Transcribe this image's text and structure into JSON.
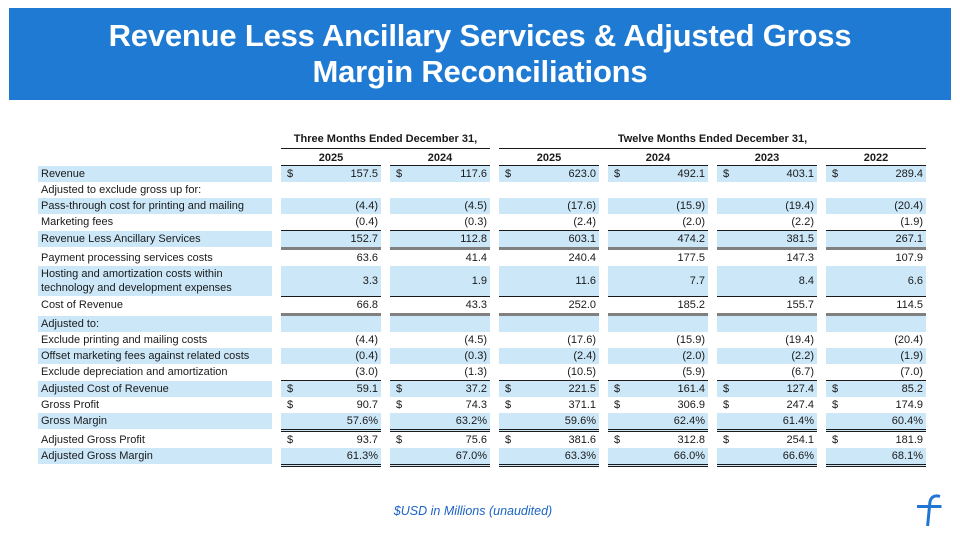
{
  "banner": {
    "title_line1": "Revenue Less Ancillary Services & Adjusted Gross",
    "title_line2": "Margin Reconciliations",
    "bg_color": "#1e7ad2",
    "text_color": "#ffffff"
  },
  "table": {
    "stripe_color": "#cbe7f8",
    "group_headers": [
      {
        "label": "Three Months Ended December 31,",
        "span": 2
      },
      {
        "label": "Twelve Months Ended December 31,",
        "span": 4
      }
    ],
    "year_columns": [
      "2025",
      "2024",
      "2025",
      "2024",
      "2023",
      "2022"
    ],
    "rows": [
      {
        "label_lines": [
          "Revenue"
        ],
        "dollar": true,
        "stripe": true,
        "rule": "none",
        "values": [
          "157.5",
          "117.6",
          "623.0",
          "492.1",
          "403.1",
          "289.4"
        ]
      },
      {
        "label_lines": [
          "Adjusted to exclude gross up for:"
        ],
        "dollar": false,
        "stripe": false,
        "rule": "none",
        "values": [
          "",
          "",
          "",
          "",
          "",
          ""
        ]
      },
      {
        "label_lines": [
          "Pass-through cost for printing and mailing"
        ],
        "dollar": false,
        "stripe": true,
        "rule": "none",
        "values": [
          "(4.4)",
          "(4.5)",
          "(17.6)",
          "(15.9)",
          "(19.4)",
          "(20.4)"
        ]
      },
      {
        "label_lines": [
          "Marketing fees"
        ],
        "dollar": false,
        "stripe": false,
        "rule": "sum",
        "values": [
          "(0.4)",
          "(0.3)",
          "(2.4)",
          "(2.0)",
          "(2.2)",
          "(1.9)"
        ]
      },
      {
        "label_lines": [
          "Revenue Less Ancillary Services"
        ],
        "dollar": false,
        "stripe": true,
        "rule": "total",
        "values": [
          "152.7",
          "112.8",
          "603.1",
          "474.2",
          "381.5",
          "267.1"
        ]
      },
      {
        "label_lines": [
          "Payment processing services costs"
        ],
        "dollar": false,
        "stripe": false,
        "rule": "none",
        "values": [
          "63.6",
          "41.4",
          "240.4",
          "177.5",
          "147.3",
          "107.9"
        ]
      },
      {
        "label_lines": [
          "Hosting and amortization costs within",
          "technology and development expenses"
        ],
        "dollar": false,
        "stripe": true,
        "rule": "sum",
        "values": [
          "3.3",
          "1.9",
          "11.6",
          "7.7",
          "8.4",
          "6.6"
        ]
      },
      {
        "label_lines": [
          "Cost of Revenue"
        ],
        "dollar": false,
        "stripe": false,
        "rule": "total",
        "values": [
          "66.8",
          "43.3",
          "252.0",
          "185.2",
          "155.7",
          "114.5"
        ]
      },
      {
        "label_lines": [
          "Adjusted to:"
        ],
        "dollar": false,
        "stripe": true,
        "rule": "none",
        "values": [
          "",
          "",
          "",
          "",
          "",
          ""
        ]
      },
      {
        "label_lines": [
          "Exclude printing and mailing costs"
        ],
        "dollar": false,
        "stripe": false,
        "rule": "none",
        "values": [
          "(4.4)",
          "(4.5)",
          "(17.6)",
          "(15.9)",
          "(19.4)",
          "(20.4)"
        ]
      },
      {
        "label_lines": [
          "Offset marketing fees against related costs"
        ],
        "dollar": false,
        "stripe": true,
        "rule": "none",
        "values": [
          "(0.4)",
          "(0.3)",
          "(2.4)",
          "(2.0)",
          "(2.2)",
          "(1.9)"
        ]
      },
      {
        "label_lines": [
          "Exclude depreciation and amortization"
        ],
        "dollar": false,
        "stripe": false,
        "rule": "sum",
        "values": [
          "(3.0)",
          "(1.3)",
          "(10.5)",
          "(5.9)",
          "(6.7)",
          "(7.0)"
        ]
      },
      {
        "label_lines": [
          "Adjusted Cost of Revenue"
        ],
        "dollar": true,
        "stripe": true,
        "rule": "none",
        "values": [
          "59.1",
          "37.2",
          "221.5",
          "161.4",
          "127.4",
          "85.2"
        ]
      },
      {
        "label_lines": [
          "Gross Profit"
        ],
        "dollar": true,
        "stripe": false,
        "rule": "none",
        "values": [
          "90.7",
          "74.3",
          "371.1",
          "306.9",
          "247.4",
          "174.9"
        ]
      },
      {
        "label_lines": [
          "Gross Margin"
        ],
        "dollar": false,
        "stripe": true,
        "rule": "double",
        "values": [
          "57.6%",
          "63.2%",
          "59.6%",
          "62.4%",
          "61.4%",
          "60.4%"
        ]
      },
      {
        "label_lines": [
          "Adjusted Gross Profit"
        ],
        "dollar": true,
        "stripe": false,
        "rule": "none",
        "values": [
          "93.7",
          "75.6",
          "381.6",
          "312.8",
          "254.1",
          "181.9"
        ]
      },
      {
        "label_lines": [
          "Adjusted Gross Margin"
        ],
        "dollar": false,
        "stripe": true,
        "rule": "double",
        "values": [
          "61.3%",
          "67.0%",
          "63.3%",
          "66.0%",
          "66.6%",
          "68.1%"
        ]
      }
    ],
    "currency_symbol": "$"
  },
  "footer": {
    "note": "$USD in Millions (unaudited)",
    "logo": "flywire-logo",
    "logo_color": "#2176d2"
  }
}
